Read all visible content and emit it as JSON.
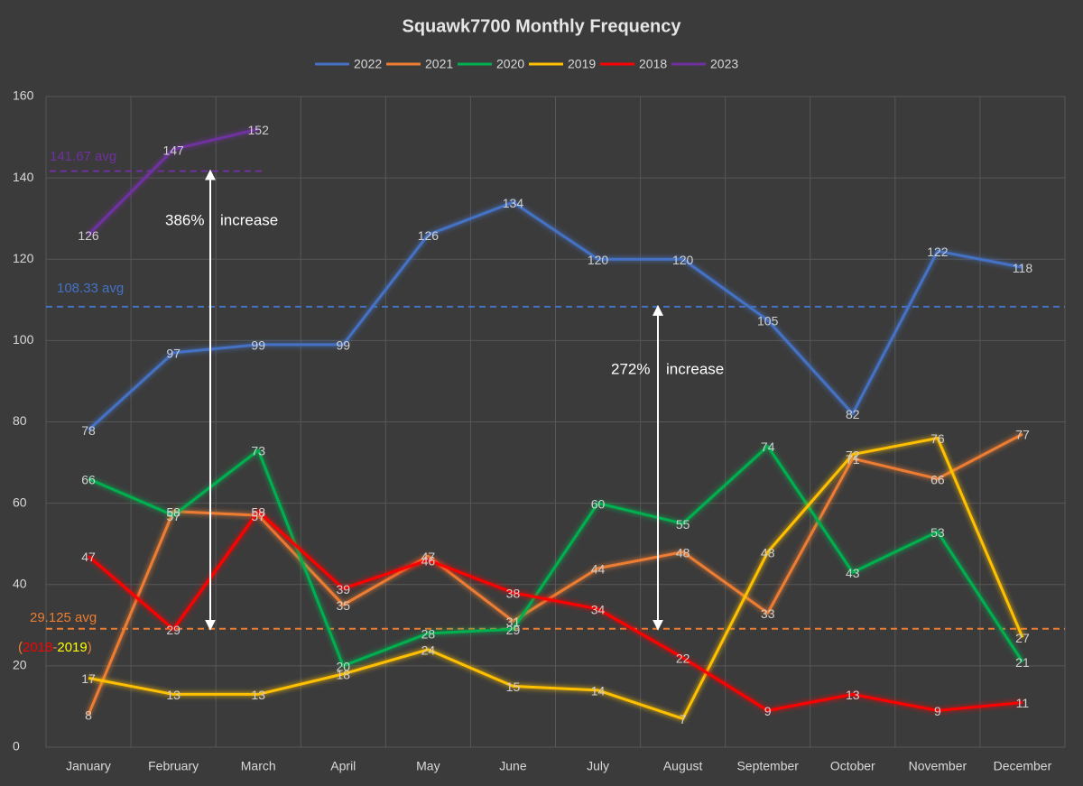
{
  "chart_data": {
    "type": "line",
    "title": "Squawk7700 Monthly Frequency",
    "categories": [
      "January",
      "February",
      "March",
      "April",
      "May",
      "June",
      "July",
      "August",
      "September",
      "October",
      "November",
      "December"
    ],
    "series": [
      {
        "name": "2022",
        "color": "#4472c4",
        "values": [
          78,
          97,
          99,
          99,
          126,
          134,
          120,
          120,
          105,
          82,
          122,
          118
        ]
      },
      {
        "name": "2021",
        "color": "#ed7d31",
        "values": [
          8,
          58,
          57,
          35,
          47,
          31,
          44,
          48,
          33,
          71,
          66,
          77
        ]
      },
      {
        "name": "2020",
        "color": "#00b050",
        "values": [
          66,
          57,
          73,
          20,
          28,
          29,
          60,
          55,
          74,
          43,
          53,
          21
        ]
      },
      {
        "name": "2019",
        "color": "#ffc000",
        "values": [
          17,
          13,
          13,
          18,
          24,
          15,
          14,
          7,
          48,
          72,
          76,
          27
        ]
      },
      {
        "name": "2018",
        "color": "#ff0000",
        "values": [
          47,
          29,
          58,
          39,
          46,
          38,
          34,
          22,
          9,
          13,
          9,
          11
        ]
      },
      {
        "name": "2023",
        "color": "#7030a0",
        "values": [
          126,
          147,
          152,
          null,
          null,
          null,
          null,
          null,
          null,
          null,
          null,
          null
        ]
      }
    ],
    "ylim": [
      0,
      160
    ],
    "yticks": [
      0,
      20,
      40,
      60,
      80,
      100,
      120,
      140,
      160
    ],
    "grid": true,
    "averages": [
      {
        "label": "141.67 avg",
        "value": 141.67,
        "color": "#7030a0"
      },
      {
        "label": "108.33 avg",
        "value": 108.33,
        "color": "#4472c4"
      },
      {
        "label": "29.125 avg",
        "value": 29.125,
        "color": "#ed7d31"
      }
    ],
    "average_note": [
      {
        "text": "(",
        "color": "#ed7d31"
      },
      {
        "text": "2018",
        "color": "#ff0000"
      },
      {
        "text": "-",
        "color": "#ed7d31"
      },
      {
        "text": "2019",
        "color": "#ffff00"
      },
      {
        "text": ")",
        "color": "#ed7d31"
      }
    ],
    "increases": [
      {
        "percent": "386%",
        "text": "increase"
      },
      {
        "percent": "272%",
        "text": "increase"
      }
    ]
  }
}
